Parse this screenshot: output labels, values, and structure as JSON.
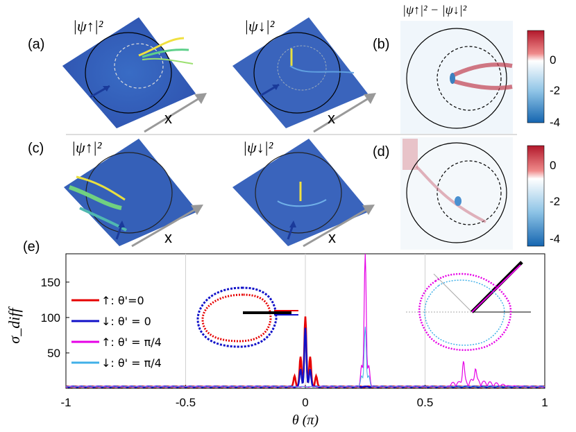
{
  "panels": {
    "a": {
      "label": "(a)",
      "title_up": "|ψ↑|²",
      "title_down": "|ψ↓|²",
      "axis": "x"
    },
    "b": {
      "label": "(b)",
      "title": "|ψ↑|² − |ψ↓|²",
      "colorbar_ticks": [
        "0",
        "-2",
        "-4"
      ]
    },
    "c": {
      "label": "(c)",
      "title_up": "|ψ↑|²",
      "title_down": "|ψ↓|²",
      "axis": "x"
    },
    "d": {
      "label": "(d)",
      "colorbar_ticks": [
        "0",
        "-2",
        "-4"
      ]
    },
    "e": {
      "label": "(e)"
    }
  },
  "colors": {
    "red": "#e60000",
    "blue": "#1010c8",
    "magenta": "#e600e6",
    "cyan": "#40b0e8"
  },
  "chart_data": {
    "type": "line",
    "xlabel": "θ (π)",
    "ylabel": "σ_diff",
    "xlim": [
      -1,
      1
    ],
    "ylim": [
      0,
      190
    ],
    "xticks": [
      -1,
      -0.5,
      0,
      0.5,
      1
    ],
    "xtick_labels": [
      "-1",
      "-0.5",
      "0",
      "0.5",
      "1"
    ],
    "yticks": [
      50,
      100,
      150
    ],
    "ytick_labels": [
      "50",
      "100",
      "150"
    ],
    "legend": [
      {
        "label": "↑: θ'=0",
        "color": "#e60000"
      },
      {
        "label": "↓: θ' = 0",
        "color": "#1010c8"
      },
      {
        "label": "↑: θ' = π/4",
        "color": "#e600e6"
      },
      {
        "label": "↓: θ' = π/4",
        "color": "#40b0e8"
      }
    ],
    "series": [
      {
        "name": "↑: θ'=0",
        "peaks": [
          [
            0,
            100
          ],
          [
            -0.02,
            42
          ],
          [
            0.02,
            42
          ],
          [
            -0.045,
            15
          ],
          [
            0.045,
            15
          ]
        ]
      },
      {
        "name": "↓: θ' = 0",
        "peaks": [
          [
            0,
            83
          ],
          [
            -0.02,
            25
          ],
          [
            0.02,
            25
          ]
        ]
      },
      {
        "name": "↑: θ' = π/4",
        "peaks": [
          [
            0.25,
            190
          ],
          [
            0.235,
            30
          ],
          [
            0.265,
            30
          ],
          [
            0.66,
            30
          ],
          [
            0.71,
            22
          ]
        ]
      },
      {
        "name": "↓: θ' = π/4",
        "peaks": [
          [
            0.25,
            85
          ],
          [
            0.235,
            15
          ],
          [
            0.265,
            15
          ]
        ]
      }
    ]
  }
}
